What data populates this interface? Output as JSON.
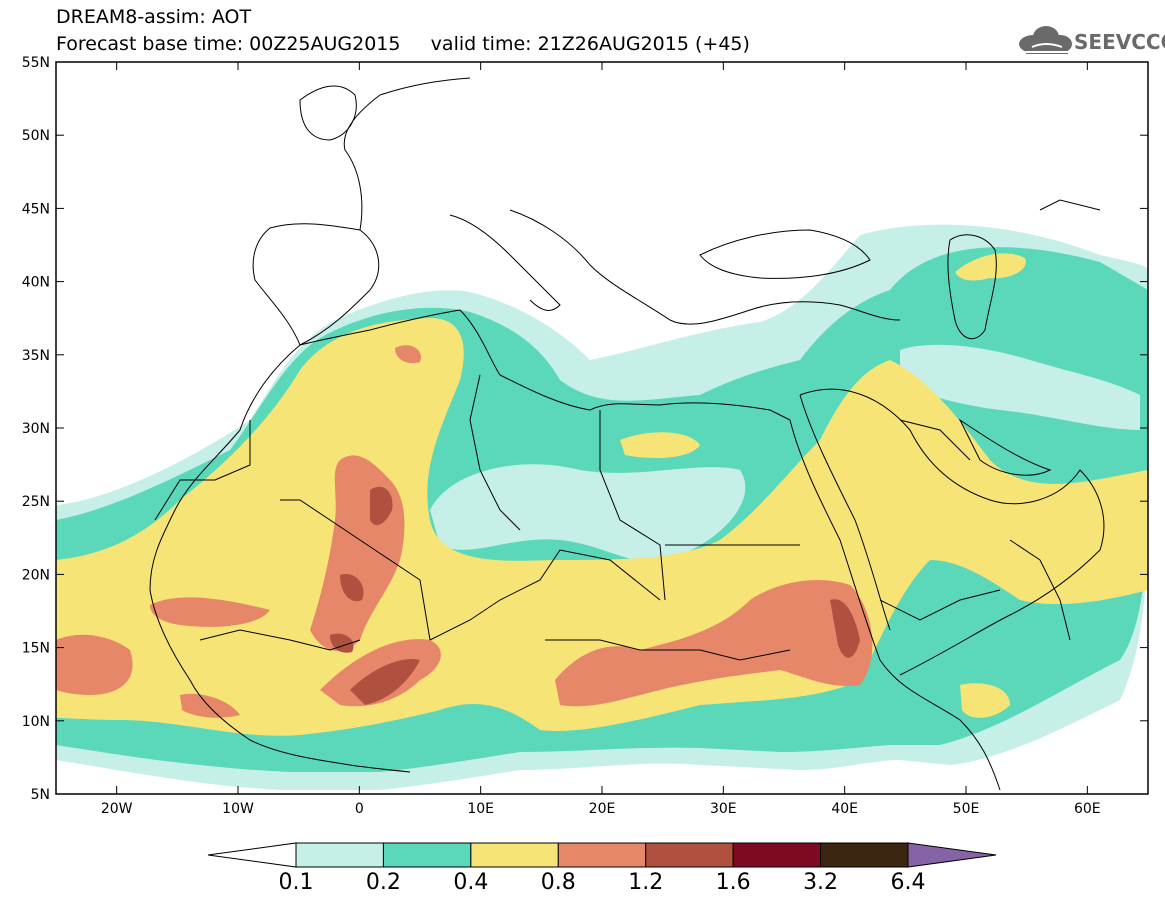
{
  "header": {
    "title_line1": "DREAM8-assim: AOT",
    "title_line2": "Forecast base time: 00Z25AUG2015     valid time: 21Z26AUG2015 (+45)"
  },
  "logo": {
    "text": "SEEVCCC",
    "icon": "cloud-icon"
  },
  "map": {
    "lon_range": [
      -25,
      65
    ],
    "lat_range": [
      5,
      55
    ],
    "lat_labels": [
      "55N",
      "50N",
      "45N",
      "40N",
      "35N",
      "30N",
      "25N",
      "20N",
      "15N",
      "10N",
      "5N"
    ],
    "lon_labels": [
      "20W",
      "10W",
      "0",
      "10E",
      "20E",
      "30E",
      "40E",
      "50E",
      "60E"
    ]
  },
  "colorbar": {
    "labels": [
      "0.1",
      "0.2",
      "0.4",
      "0.8",
      "1.2",
      "1.6",
      "3.2",
      "6.4"
    ],
    "colors": [
      "#ffffff",
      "#c6efe8",
      "#5ad8b9",
      "#f7e477",
      "#e7876a",
      "#b0513f",
      "#7e0a21",
      "#3c2511",
      "#8663a4"
    ]
  }
}
